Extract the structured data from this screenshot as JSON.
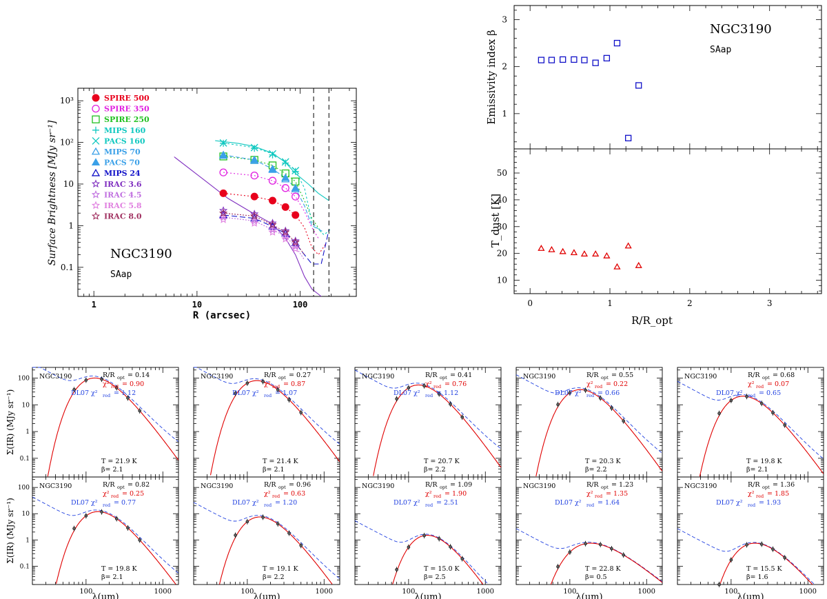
{
  "colors": {
    "red": "#e8001c",
    "magenta": "#e020e0",
    "green": "#20c020",
    "cyan": "#10c8c0",
    "skyblue": "#3aa0e8",
    "blue": "#1010c8",
    "purple": "#8030c0",
    "violet": "#c070e0",
    "pink": "#e080e0",
    "maroon": "#a03060",
    "fitred": "#e00000",
    "fitblue": "#2040e0"
  },
  "chart_data": [
    {
      "id": "profile",
      "type": "scatter",
      "ylabel": "Surface Brightness [MJy sr⁻¹]",
      "xlabel": "R (arcsec)",
      "xscale": "log",
      "yscale": "log",
      "xlim": [
        0.7,
        350
      ],
      "ylim": [
        0.02,
        2000
      ],
      "xticks": [
        {
          "v": 1,
          "label": "1"
        },
        {
          "v": 10,
          "label": "10"
        },
        {
          "v": 100,
          "label": "100"
        }
      ],
      "yticks": [
        {
          "v": 0.1,
          "label": "0.1"
        },
        {
          "v": 1,
          "label": "1"
        },
        {
          "v": 10,
          "label": "10"
        },
        {
          "v": 100,
          "label": "10²"
        },
        {
          "v": 1000,
          "label": "10³"
        }
      ],
      "galaxy": "NGC3190",
      "morph": "SAap",
      "vlines": [
        135,
        190
      ],
      "legend": [
        {
          "name": "SPIRE 500",
          "color": "#e8001c",
          "marker": "filled-circle"
        },
        {
          "name": "SPIRE 350",
          "color": "#e020e0",
          "marker": "circle"
        },
        {
          "name": "SPIRE 250",
          "color": "#20c020",
          "marker": "square"
        },
        {
          "name": "MIPS 160",
          "color": "#10c8c0",
          "marker": "plus"
        },
        {
          "name": "PACS 160",
          "color": "#10c8c0",
          "marker": "cross"
        },
        {
          "name": "MIPS 70",
          "color": "#3aa0e8",
          "marker": "triangle"
        },
        {
          "name": "PACS 70",
          "color": "#3aa0e8",
          "marker": "filled-triangle"
        },
        {
          "name": "MIPS 24",
          "color": "#1010c8",
          "marker": "triangle"
        },
        {
          "name": "IRAC 3.6",
          "color": "#8030c0",
          "marker": "star"
        },
        {
          "name": "IRAC 4.5",
          "color": "#c070e0",
          "marker": "star"
        },
        {
          "name": "IRAC 5.8",
          "color": "#e080e0",
          "marker": "star"
        },
        {
          "name": "IRAC 8.0",
          "color": "#a03060",
          "marker": "star"
        }
      ],
      "series": [
        {
          "name": "SPIRE 500",
          "x": [
            18,
            36,
            54,
            72,
            90
          ],
          "y": [
            6.0,
            5.0,
            4.0,
            2.8,
            1.8
          ],
          "color": "#e8001c",
          "marker": "filled-circle"
        },
        {
          "name": "SPIRE 350",
          "x": [
            18,
            36,
            54,
            72,
            90
          ],
          "y": [
            19,
            16,
            12,
            8,
            5
          ],
          "color": "#e020e0",
          "marker": "circle"
        },
        {
          "name": "SPIRE 250",
          "x": [
            18,
            36,
            54,
            72,
            90
          ],
          "y": [
            46,
            38,
            28,
            18,
            11.5
          ],
          "color": "#20c020",
          "marker": "square"
        },
        {
          "name": "MIPS 160",
          "x": [
            18,
            36,
            54,
            72,
            90
          ],
          "y": [
            95,
            72,
            50,
            32,
            20
          ],
          "color": "#10c8c0",
          "marker": "plus"
        },
        {
          "name": "PACS 160",
          "x": [
            18,
            36,
            54,
            72,
            90
          ],
          "y": [
            97,
            75,
            53,
            34,
            21
          ],
          "color": "#10c8c0",
          "marker": "cross"
        },
        {
          "name": "MIPS 70",
          "x": [
            18,
            36,
            54,
            72,
            90
          ],
          "y": [
            48,
            36,
            22,
            13,
            7.5
          ],
          "color": "#3aa0e8",
          "marker": "triangle"
        },
        {
          "name": "PACS 70",
          "x": [
            18,
            36,
            54,
            72,
            90
          ],
          "y": [
            50,
            38,
            23,
            14,
            8
          ],
          "color": "#3aa0e8",
          "marker": "filled-triangle"
        },
        {
          "name": "MIPS 24",
          "x": [
            18,
            36,
            54,
            72,
            90
          ],
          "y": [
            1.8,
            1.5,
            0.95,
            0.65,
            0.38
          ],
          "color": "#1010c8",
          "marker": "triangle"
        },
        {
          "name": "IRAC 3.6",
          "x": [
            18,
            36,
            54,
            72,
            90
          ],
          "y": [
            2.3,
            1.9,
            1.15,
            0.75,
            0.43
          ],
          "color": "#8030c0",
          "marker": "star"
        },
        {
          "name": "IRAC 4.5",
          "x": [
            18,
            36,
            54,
            72,
            90
          ],
          "y": [
            1.6,
            1.3,
            0.8,
            0.55,
            0.32
          ],
          "color": "#c070e0",
          "marker": "star"
        },
        {
          "name": "IRAC 5.8",
          "x": [
            18,
            36,
            54,
            72,
            90
          ],
          "y": [
            1.4,
            1.15,
            0.7,
            0.48,
            0.28
          ],
          "color": "#e080e0",
          "marker": "star"
        },
        {
          "name": "IRAC 8.0",
          "x": [
            18,
            36,
            54,
            72,
            90
          ],
          "y": [
            2.0,
            1.7,
            1.05,
            0.7,
            0.4
          ],
          "color": "#a03060",
          "marker": "star"
        }
      ],
      "curves": [
        {
          "name": "SPIRE 500 profile",
          "x": [
            18,
            36,
            54,
            72,
            90,
            110,
            130,
            150,
            175
          ],
          "y": [
            6,
            5,
            4,
            2.8,
            1.8,
            0.9,
            0.3,
            0.2,
            0.35
          ],
          "color": "#e8001c",
          "dash": "2,3"
        },
        {
          "name": "SPIRE 350 profile",
          "x": [
            18,
            36,
            54,
            72,
            90,
            110,
            130,
            150
          ],
          "y": [
            19,
            16,
            12,
            8,
            5,
            2.2,
            0.9,
            0.5
          ],
          "color": "#e020e0",
          "dash": "2,3"
        },
        {
          "name": "SPIRE 250 profile",
          "x": [
            18,
            36,
            54,
            72,
            90,
            110,
            130,
            160
          ],
          "y": [
            46,
            38,
            28,
            18,
            11.5,
            4,
            1.5,
            0.7
          ],
          "color": "#20c020",
          "dash": "2,3"
        },
        {
          "name": "MIPS 160 profile",
          "x": [
            15,
            25,
            36,
            54,
            72,
            90,
            120,
            150,
            190
          ],
          "y": [
            110,
            95,
            80,
            55,
            33,
            18,
            10,
            6,
            4
          ],
          "color": "#10c8c0",
          "dash": ""
        },
        {
          "name": "PACS 160 profile",
          "x": [
            18,
            36,
            54,
            72,
            90,
            110,
            130,
            170,
            195
          ],
          "y": [
            97,
            75,
            53,
            34,
            21,
            8,
            1.2,
            0.6,
            0.8
          ],
          "color": "#10c8c0",
          "dash": "3,3"
        },
        {
          "name": "PACS 70 profile",
          "x": [
            18,
            36,
            54,
            72,
            90,
            110,
            130,
            170
          ],
          "y": [
            50,
            38,
            23,
            14,
            8,
            3,
            1,
            0.7
          ],
          "color": "#3aa0e8",
          "dash": "6,3"
        },
        {
          "name": "MIPS 24 profile",
          "x": [
            18,
            36,
            54,
            72,
            90,
            110,
            130,
            160,
            190
          ],
          "y": [
            1.8,
            1.5,
            0.95,
            0.65,
            0.38,
            0.2,
            0.12,
            0.12,
            0.8
          ],
          "color": "#1010c8",
          "dash": "8,4"
        },
        {
          "name": "IRAC 3.6 profile",
          "x": [
            6,
            12,
            20,
            36,
            54,
            72,
            90,
            110,
            130,
            160
          ],
          "y": [
            45,
            12,
            4.5,
            1.9,
            1.1,
            0.5,
            0.2,
            0.06,
            0.03,
            0.02
          ],
          "color": "#8030c0",
          "dash": ""
        },
        {
          "name": "IRAC 4.5 profile",
          "x": [
            18,
            36,
            54,
            72,
            90,
            110
          ],
          "y": [
            1.6,
            1.3,
            0.8,
            0.55,
            0.32,
            0.15
          ],
          "color": "#c070e0",
          "dash": "2,2"
        },
        {
          "name": "IRAC 8.0 profile",
          "x": [
            18,
            36,
            54,
            72,
            90,
            110
          ],
          "y": [
            2.0,
            1.7,
            1.05,
            0.7,
            0.4,
            0.2
          ],
          "color": "#a03060",
          "dash": "2,2"
        }
      ]
    },
    {
      "id": "beta",
      "type": "scatter",
      "ylabel": "Emissivity index β",
      "xlim": [
        -0.2,
        3.65
      ],
      "ylim": [
        0.25,
        3.3
      ],
      "xticks": [
        {
          "v": 0,
          "label": ""
        },
        {
          "v": 1,
          "label": ""
        },
        {
          "v": 2,
          "label": ""
        },
        {
          "v": 3,
          "label": ""
        }
      ],
      "yticks": [
        {
          "v": 1,
          "label": "1"
        },
        {
          "v": 2,
          "label": "2"
        },
        {
          "v": 3,
          "label": "3"
        }
      ],
      "galaxy": "NGC3190",
      "morph": "SAap",
      "series": [
        {
          "name": "beta",
          "x": [
            0.14,
            0.27,
            0.41,
            0.55,
            0.68,
            0.82,
            0.96,
            1.09,
            1.23,
            1.36
          ],
          "y": [
            2.14,
            2.14,
            2.15,
            2.15,
            2.14,
            2.08,
            2.18,
            2.5,
            0.48,
            1.6
          ],
          "color": "#1010c8",
          "marker": "square"
        }
      ]
    },
    {
      "id": "tdust",
      "type": "scatter",
      "xlabel": "R/R_opt",
      "ylabel": "T_dust [K]",
      "xlim": [
        -0.2,
        3.65
      ],
      "ylim": [
        5,
        59
      ],
      "xticks": [
        {
          "v": 0,
          "label": "0"
        },
        {
          "v": 1,
          "label": "1"
        },
        {
          "v": 2,
          "label": "2"
        },
        {
          "v": 3,
          "label": "3"
        }
      ],
      "yticks": [
        {
          "v": 10,
          "label": "10"
        },
        {
          "v": 20,
          "label": "20"
        },
        {
          "v": 30,
          "label": "30"
        },
        {
          "v": 40,
          "label": "40"
        },
        {
          "v": 50,
          "label": "50"
        }
      ],
      "series": [
        {
          "name": "T",
          "x": [
            0.14,
            0.27,
            0.41,
            0.55,
            0.68,
            0.82,
            0.96,
            1.09,
            1.23,
            1.36
          ],
          "y": [
            21.9,
            21.4,
            20.7,
            20.3,
            19.8,
            19.8,
            19.1,
            15.0,
            22.8,
            15.5
          ],
          "color": "#e00000",
          "marker": "triangle"
        }
      ]
    },
    {
      "id": "seds",
      "type": "line",
      "xlabel": "λ(μm)",
      "ylabel": "Σ(IR) (MJy sr⁻¹)",
      "xlim": [
        20,
        1600
      ],
      "ylim": [
        0.02,
        250
      ],
      "xticks": [
        {
          "v": 100,
          "label": "100"
        },
        {
          "v": 1000,
          "label": "1000"
        }
      ],
      "yticks": [
        {
          "v": 0.1,
          "label": "0.1"
        },
        {
          "v": 1,
          "label": "1"
        },
        {
          "v": 10,
          "label": "10"
        },
        {
          "v": 100,
          "label": "100"
        }
      ],
      "galaxy": "NGC3190",
      "bands": [
        70,
        100,
        160,
        250,
        350,
        500
      ],
      "panels": [
        {
          "r": "0.14",
          "chi": "0.90",
          "dl": "1.12",
          "T": "21.9",
          "beta": "2.1",
          "Tval": 21.9,
          "bval": 2.1,
          "peak": 100
        },
        {
          "r": "0.27",
          "chi": "0.87",
          "dl": "1.07",
          "T": "21.4",
          "beta": "2.1",
          "Tval": 21.4,
          "bval": 2.1,
          "peak": 80
        },
        {
          "r": "0.41",
          "chi": "0.76",
          "dl": "1.12",
          "T": "20.7",
          "beta": "2.2",
          "Tval": 20.7,
          "bval": 2.2,
          "peak": 55
        },
        {
          "r": "0.55",
          "chi": "0.22",
          "dl": "0.66",
          "T": "20.3",
          "beta": "2.2",
          "Tval": 20.3,
          "bval": 2.2,
          "peak": 37
        },
        {
          "r": "0.68",
          "chi": "0.07",
          "dl": "0.65",
          "T": "19.8",
          "beta": "2.1",
          "Tval": 19.8,
          "bval": 2.1,
          "peak": 21
        },
        {
          "r": "0.82",
          "chi": "0.25",
          "dl": "0.77",
          "T": "19.8",
          "beta": "2.1",
          "Tval": 19.8,
          "bval": 2.1,
          "peak": 12
        },
        {
          "r": "0.96",
          "chi": "0.63",
          "dl": "1.20",
          "T": "19.1",
          "beta": "2.2",
          "Tval": 19.1,
          "bval": 2.2,
          "peak": 7.5
        },
        {
          "r": "1.09",
          "chi": "1.90",
          "dl": "2.51",
          "T": "15.0",
          "beta": "2.5",
          "Tval": 15.0,
          "bval": 2.5,
          "peak": 1.5
        },
        {
          "r": "1.23",
          "chi": "1.35",
          "dl": "1.64",
          "T": "22.8",
          "beta": "0.5",
          "Tval": 22.8,
          "bval": 0.5,
          "peak": 0.75
        },
        {
          "r": "1.36",
          "chi": "1.85",
          "dl": "1.93",
          "T": "15.5",
          "beta": "1.6",
          "Tval": 15.5,
          "bval": 1.6,
          "peak": 0.75
        }
      ]
    }
  ]
}
